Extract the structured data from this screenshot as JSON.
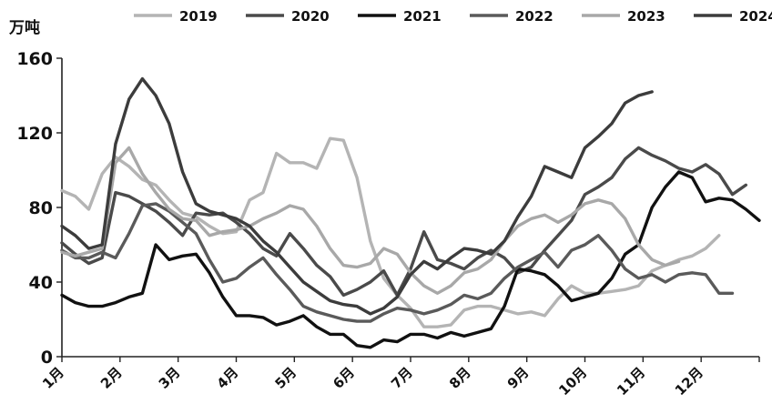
{
  "chart_data": {
    "type": "line",
    "unit_label": "万吨",
    "ylim": [
      0,
      160
    ],
    "yticks": [
      0,
      40,
      80,
      120,
      160
    ],
    "month_labels": [
      "1月",
      "2月",
      "3月",
      "4月",
      "5月",
      "6月",
      "7月",
      "8月",
      "9月",
      "10月",
      "11月",
      "12月"
    ],
    "x_unit": "week of year",
    "legend_position": "top",
    "grid": false,
    "series": [
      {
        "name": "2019",
        "color": "#b4b4b4",
        "values": [
          89,
          86,
          79,
          98,
          107,
          102,
          95,
          92,
          84,
          77,
          75,
          70,
          66,
          67,
          84,
          88,
          109,
          104,
          104,
          101,
          117,
          116,
          96,
          62,
          42,
          33,
          26,
          16,
          16,
          17,
          25,
          27,
          27,
          25,
          23,
          24,
          22,
          31,
          38,
          34,
          34,
          35,
          36,
          38,
          46,
          49,
          52,
          54,
          58,
          65
        ]
      },
      {
        "name": "2020",
        "color": "#4a4a4a",
        "values": [
          61,
          55,
          50,
          53,
          88,
          86,
          82,
          78,
          72,
          65,
          77,
          76,
          77,
          72,
          66,
          58,
          54,
          66,
          58,
          49,
          43,
          33,
          36,
          40,
          46,
          33,
          47,
          67,
          52,
          50,
          47,
          53,
          57,
          53,
          45,
          48,
          57,
          65,
          73,
          87,
          91,
          96,
          106,
          112,
          108,
          105,
          101,
          99,
          103,
          98,
          87,
          92
        ]
      },
      {
        "name": "2021",
        "color": "#111111",
        "values": [
          33,
          29,
          27,
          27,
          29,
          32,
          34,
          60,
          52,
          54,
          55,
          45,
          32,
          22,
          22,
          21,
          17,
          19,
          22,
          16,
          12,
          12,
          6,
          5,
          9,
          8,
          12,
          12,
          10,
          13,
          11,
          13,
          15,
          27,
          47,
          46,
          44,
          38,
          30,
          32,
          34,
          42,
          55,
          60,
          80,
          91,
          99,
          96,
          83,
          85,
          84,
          79,
          73
        ]
      },
      {
        "name": "2022",
        "color": "#5a5a5a",
        "values": [
          57,
          53,
          53,
          56,
          53,
          66,
          81,
          82,
          78,
          72,
          66,
          52,
          40,
          42,
          48,
          53,
          44,
          36,
          27,
          24,
          22,
          20,
          19,
          19,
          23,
          26,
          25,
          23,
          25,
          28,
          33,
          31,
          34,
          42,
          48,
          52,
          56,
          48,
          57,
          60,
          65,
          57,
          47,
          42,
          44,
          40,
          44,
          45,
          44,
          34,
          34
        ]
      },
      {
        "name": "2023",
        "color": "#a8a8a8",
        "values": [
          56,
          54,
          56,
          58,
          104,
          112,
          98,
          88,
          79,
          74,
          73,
          65,
          67,
          68,
          70,
          74,
          77,
          81,
          79,
          70,
          58,
          49,
          48,
          50,
          58,
          55,
          45,
          38,
          34,
          38,
          45,
          47,
          52,
          62,
          70,
          74,
          76,
          72,
          76,
          82,
          84,
          82,
          74,
          60,
          52,
          49,
          51
        ]
      },
      {
        "name": "2024",
        "color": "#3c3c3c",
        "values": [
          70,
          65,
          58,
          60,
          114,
          138,
          149,
          140,
          125,
          99,
          82,
          78,
          76,
          74,
          70,
          62,
          56,
          48,
          40,
          35,
          30,
          28,
          27,
          23,
          26,
          32,
          44,
          51,
          47,
          53,
          58,
          57,
          55,
          62,
          75,
          86,
          102,
          99,
          96,
          112,
          118,
          125,
          136,
          140,
          142
        ]
      }
    ]
  }
}
